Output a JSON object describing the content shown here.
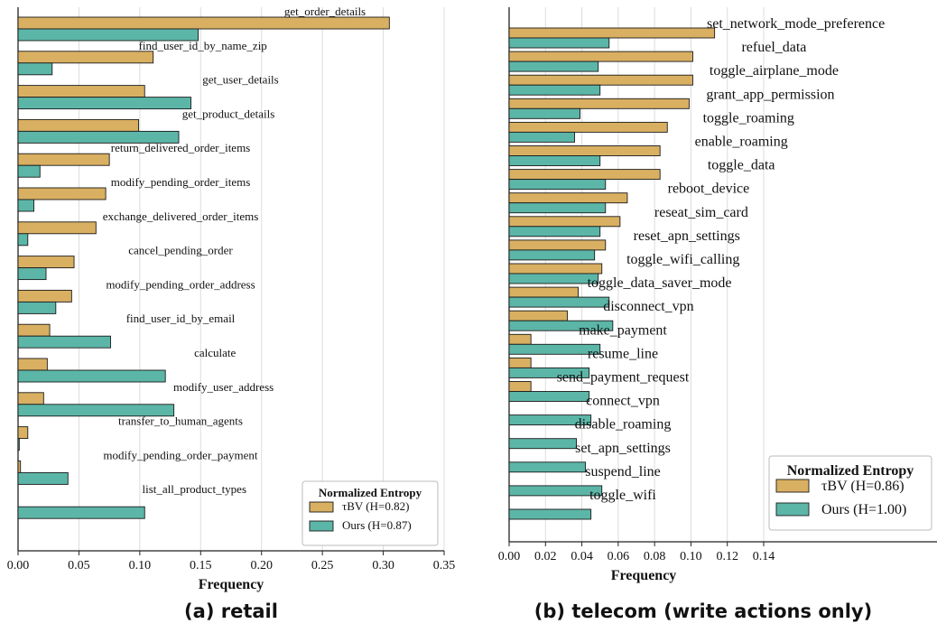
{
  "chart_data": [
    {
      "type": "bar",
      "orientation": "horizontal",
      "subtitle": "(a) retail",
      "xlabel": "Frequency",
      "ylabel": "",
      "xlim": [
        0,
        0.35
      ],
      "xticks": [
        "0.00",
        "0.05",
        "0.10",
        "0.15",
        "0.20",
        "0.25",
        "0.30",
        "0.35"
      ],
      "grid": true,
      "legend": {
        "title": "Normalized Entropy",
        "position": "bottom-right"
      },
      "categories": [
        "get_order_details",
        "find_user_id_by_name_zip",
        "get_user_details",
        "get_product_details",
        "return_delivered_order_items",
        "modify_pending_order_items",
        "exchange_delivered_order_items",
        "cancel_pending_order",
        "modify_pending_order_address",
        "find_user_id_by_email",
        "calculate",
        "modify_user_address",
        "transfer_to_human_agents",
        "modify_pending_order_payment",
        "list_all_product_types"
      ],
      "series": [
        {
          "name": "τBV (H=0.82)",
          "color": "#d9b062",
          "values": [
            0.305,
            0.111,
            0.104,
            0.099,
            0.075,
            0.072,
            0.064,
            0.046,
            0.044,
            0.026,
            0.024,
            0.021,
            0.008,
            0.002,
            0.0
          ]
        },
        {
          "name": "Ours (H=0.87)",
          "color": "#5cb6a8",
          "values": [
            0.148,
            0.028,
            0.142,
            0.132,
            0.018,
            0.013,
            0.008,
            0.023,
            0.031,
            0.076,
            0.121,
            0.128,
            0.001,
            0.041,
            0.104
          ]
        }
      ]
    },
    {
      "type": "bar",
      "orientation": "horizontal",
      "subtitle": "(b) telecom (write actions only)",
      "xlabel": "Frequency",
      "ylabel": "",
      "xlim": [
        0,
        0.14
      ],
      "xticks": [
        "0.00",
        "0.02",
        "0.04",
        "0.06",
        "0.08",
        "0.10",
        "0.12",
        "0.14"
      ],
      "grid": true,
      "legend": {
        "title": "Normalized Entropy",
        "position": "bottom-right"
      },
      "categories": [
        "set_network_mode_preference",
        "refuel_data",
        "toggle_airplane_mode",
        "grant_app_permission",
        "toggle_roaming",
        "enable_roaming",
        "toggle_data",
        "reboot_device",
        "reseat_sim_card",
        "reset_apn_settings",
        "toggle_wifi_calling",
        "toggle_data_saver_mode",
        "disconnect_vpn",
        "make_payment",
        "resume_line",
        "send_payment_request",
        "connect_vpn",
        "disable_roaming",
        "set_apn_settings",
        "suspend_line",
        "toggle_wifi"
      ],
      "series": [
        {
          "name": "τBV (H=0.86)",
          "color": "#d9b062",
          "values": [
            0.113,
            0.101,
            0.101,
            0.099,
            0.087,
            0.083,
            0.083,
            0.065,
            0.061,
            0.053,
            0.051,
            0.038,
            0.032,
            0.012,
            0.012,
            0.012,
            0.0,
            0.0,
            0.0,
            0.0,
            0.0
          ]
        },
        {
          "name": "Ours (H=1.00)",
          "color": "#5cb6a8",
          "values": [
            0.055,
            0.049,
            0.05,
            0.039,
            0.036,
            0.05,
            0.053,
            0.053,
            0.05,
            0.047,
            0.049,
            0.055,
            0.057,
            0.05,
            0.044,
            0.044,
            0.045,
            0.037,
            0.042,
            0.051,
            0.045
          ]
        }
      ]
    }
  ]
}
